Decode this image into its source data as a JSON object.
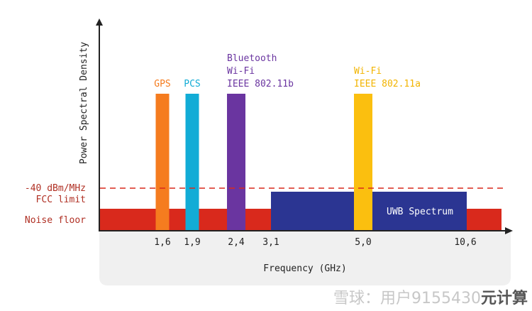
{
  "chart_data": {
    "type": "bar",
    "title": "",
    "xlabel": "Frequency (GHz)",
    "ylabel": "Power Spectral Density",
    "x_ticks": [
      "1,6",
      "1,9",
      "2,4",
      "3,1",
      "5,0",
      "10,6"
    ],
    "levels": {
      "fcc_limit": {
        "label_line1": "-40 dBm/MHz",
        "label_line2": "FCC limit",
        "color": "#d9291c",
        "style": "dashed"
      },
      "noise_floor": {
        "label": "Noise floor",
        "color": "#d9291c"
      }
    },
    "bands": [
      {
        "name": "GPS",
        "label_lines": [
          "GPS"
        ],
        "freq": "1,6",
        "color": "#f57c1f"
      },
      {
        "name": "PCS",
        "label_lines": [
          "PCS"
        ],
        "freq": "1,9",
        "color": "#12acd6"
      },
      {
        "name": "Bluetooth / Wi-Fi IEEE 802.11b",
        "label_lines": [
          "Bluetooth",
          "Wi-Fi",
          "IEEE 802.11b"
        ],
        "freq": "2,4",
        "color": "#6a35a0"
      },
      {
        "name": "Wi-Fi IEEE 802.11a",
        "label_lines": [
          "Wi-Fi",
          "IEEE 802.11a"
        ],
        "freq": "5,0",
        "color": "#fbbf0f"
      }
    ],
    "uwb": {
      "label": "UWB Spectrum",
      "range": [
        "3,1",
        "10,6"
      ],
      "color": "#2b3592"
    },
    "axis_color": "#222222",
    "panel_color": "#f0f0f0"
  },
  "watermark": {
    "text": "雪球：用户9155430",
    "suffix": "元计算"
  }
}
